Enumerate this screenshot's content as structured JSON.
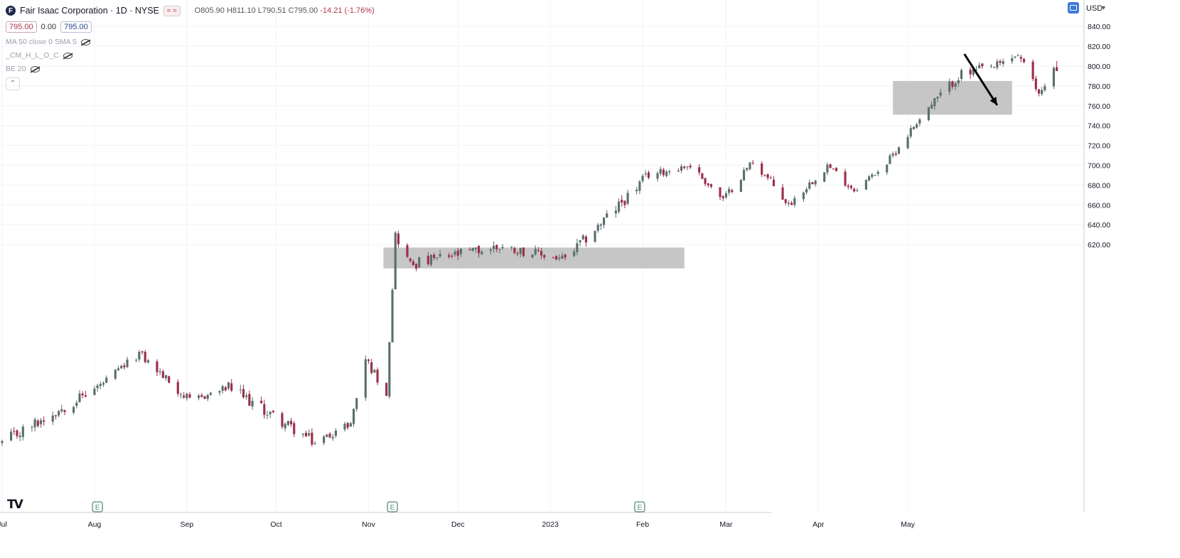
{
  "header": {
    "logo_letter": "F",
    "symbol_title": "Fair Isaac Corporation · 1D · NYSE",
    "pill": "≈ ≈",
    "ohlc": {
      "o": "O805.90",
      "h": "H811.10",
      "l": "L790.51",
      "c": "C795.00",
      "change": "-14.21 (-1.76%)"
    },
    "sell_price": "795.00",
    "spread": "0.00",
    "buy_price": "795.00"
  },
  "indicators": [
    {
      "label": "MA 50 close 0 SMA 5",
      "icon": "eye-hidden-icon"
    },
    {
      "label": "_CM_H_L_O_C",
      "icon": "eye-hidden-icon"
    },
    {
      "label": "BE 20",
      "icon": "eye-hidden-icon"
    }
  ],
  "collapse_label": "⌃",
  "currency": "USD",
  "currency_arrow": "▾",
  "branding": "TV",
  "earnings_marker": "E",
  "colors": {
    "up": "#5a6e6e",
    "down": "#9c2e48",
    "zone": "#c3c3c3",
    "arrow": "#000000",
    "grid": "#f1f3f6"
  },
  "chart_data": {
    "type": "candlestick",
    "title": "Fair Isaac Corporation · 1D · NYSE",
    "y_ticks": [
      "840.00",
      "820.00",
      "800.00",
      "780.00",
      "760.00",
      "740.00",
      "720.00",
      "700.00",
      "680.00",
      "660.00",
      "640.00",
      "620.00"
    ],
    "y_tick_values": [
      840,
      820,
      800,
      780,
      760,
      740,
      720,
      700,
      680,
      660,
      640,
      620
    ],
    "x_ticks": [
      "Jul",
      "Aug",
      "Sep",
      "Oct",
      "Nov",
      "Dec",
      "2023",
      "Feb",
      "Mar",
      "Apr",
      "May"
    ],
    "x_tick_dates": [
      "2022-07-01",
      "2022-08-01",
      "2022-09-01",
      "2022-10-01",
      "2022-11-01",
      "2022-12-01",
      "2023-01-01",
      "2023-02-01",
      "2023-03-01",
      "2023-04-01",
      "2023-05-01"
    ],
    "earnings_dates": [
      "2022-08-02",
      "2022-11-09",
      "2023-01-31"
    ],
    "zones": [
      {
        "from_date": "2022-11-06",
        "to_date": "2023-02-15",
        "low": 596,
        "high": 617
      },
      {
        "from_date": "2023-04-26",
        "to_date": "2023-06-05",
        "low": 751,
        "high": 785
      }
    ],
    "arrow": {
      "direction": "down",
      "from_date": "2023-05-20",
      "to_date": "2023-05-31"
    },
    "price_segments": [
      {
        "from": "2022-07-01",
        "to": "2022-08-03",
        "start": 420,
        "end": 478,
        "amp": 6
      },
      {
        "from": "2022-08-03",
        "to": "2022-08-16",
        "start": 478,
        "end": 510,
        "amp": 4
      },
      {
        "from": "2022-08-16",
        "to": "2022-09-02",
        "start": 510,
        "end": 462,
        "amp": 5
      },
      {
        "from": "2022-09-02",
        "to": "2022-09-15",
        "start": 462,
        "end": 476,
        "amp": 4
      },
      {
        "from": "2022-09-15",
        "to": "2022-10-14",
        "start": 476,
        "end": 420,
        "amp": 6
      },
      {
        "from": "2022-10-14",
        "to": "2022-10-26",
        "start": 420,
        "end": 440,
        "amp": 4
      },
      {
        "from": "2022-10-26",
        "to": "2022-10-31",
        "start": 440,
        "end": 505,
        "amp": 4
      },
      {
        "from": "2022-10-31",
        "to": "2022-11-07",
        "start": 505,
        "end": 470,
        "amp": 5
      },
      {
        "from": "2022-11-07",
        "to": "2022-11-10",
        "start": 470,
        "end": 630,
        "amp": 3
      },
      {
        "from": "2022-11-10",
        "to": "2022-11-15",
        "start": 630,
        "end": 600,
        "amp": 5
      },
      {
        "from": "2022-11-15",
        "to": "2022-12-15",
        "start": 600,
        "end": 618,
        "amp": 6
      },
      {
        "from": "2022-12-15",
        "to": "2023-01-06",
        "start": 618,
        "end": 605,
        "amp": 5
      },
      {
        "from": "2023-01-06",
        "to": "2023-02-03",
        "start": 605,
        "end": 690,
        "amp": 6
      },
      {
        "from": "2023-02-03",
        "to": "2023-02-17",
        "start": 690,
        "end": 700,
        "amp": 4
      },
      {
        "from": "2023-02-17",
        "to": "2023-02-28",
        "start": 700,
        "end": 665,
        "amp": 4
      },
      {
        "from": "2023-02-28",
        "to": "2023-03-10",
        "start": 665,
        "end": 705,
        "amp": 4
      },
      {
        "from": "2023-03-10",
        "to": "2023-03-22",
        "start": 705,
        "end": 660,
        "amp": 5
      },
      {
        "from": "2023-03-22",
        "to": "2023-04-04",
        "start": 660,
        "end": 700,
        "amp": 4
      },
      {
        "from": "2023-04-04",
        "to": "2023-04-13",
        "start": 700,
        "end": 675,
        "amp": 4
      },
      {
        "from": "2023-04-13",
        "to": "2023-04-24",
        "start": 675,
        "end": 702,
        "amp": 3
      },
      {
        "from": "2023-04-24",
        "to": "2023-05-05",
        "start": 702,
        "end": 748,
        "amp": 4
      },
      {
        "from": "2023-05-05",
        "to": "2023-05-18",
        "start": 748,
        "end": 790,
        "amp": 5
      },
      {
        "from": "2023-05-18",
        "to": "2023-05-31",
        "start": 790,
        "end": 800,
        "amp": 6
      },
      {
        "from": "2023-05-31",
        "to": "2023-06-07",
        "start": 800,
        "end": 812,
        "amp": 5
      },
      {
        "from": "2023-06-07",
        "to": "2023-06-14",
        "start": 812,
        "end": 772,
        "amp": 5
      },
      {
        "from": "2023-06-14",
        "to": "2023-06-21",
        "start": 772,
        "end": 808,
        "amp": 4
      }
    ],
    "last_close": 795
  }
}
